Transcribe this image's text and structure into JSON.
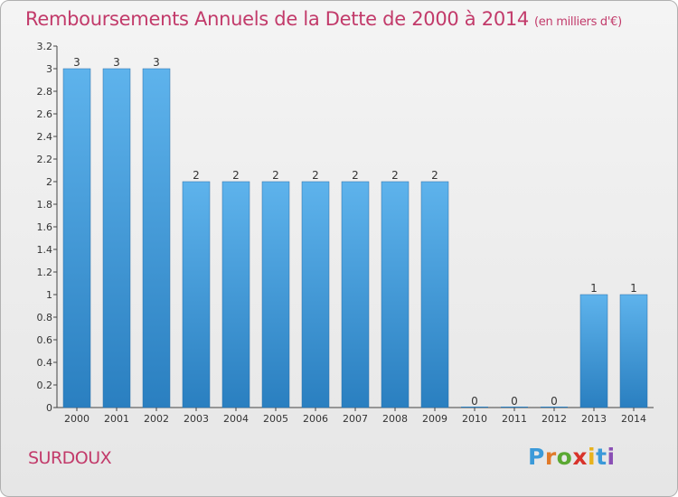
{
  "header": {
    "title": "Remboursements Annuels de la Dette de 2000 à 2014",
    "unit": "(en milliers d'€)"
  },
  "footer": {
    "commune": "SURDOUX",
    "logo_text": "Proxiti"
  },
  "colors": {
    "title": "#c23a6a",
    "bar_light": "#5eb3ec",
    "bar_dark": "#2a7fc0"
  },
  "chart_data": {
    "type": "bar",
    "title": "Remboursements Annuels de la Dette de 2000 à 2014",
    "subtitle": "(en milliers d'€)",
    "xlabel": "",
    "ylabel": "",
    "categories": [
      "2000",
      "2001",
      "2002",
      "2003",
      "2004",
      "2005",
      "2006",
      "2007",
      "2008",
      "2009",
      "2010",
      "2011",
      "2012",
      "2013",
      "2014"
    ],
    "values": [
      3,
      3,
      3,
      2,
      2,
      2,
      2,
      2,
      2,
      2,
      0,
      0,
      0,
      1,
      1
    ],
    "data_labels": [
      "3",
      "3",
      "3",
      "2",
      "2",
      "2",
      "2",
      "2",
      "2",
      "2",
      "0",
      "0",
      "0",
      "1",
      "1"
    ],
    "ylim": [
      0,
      3.2
    ],
    "yticks": [
      0,
      0.2,
      0.4,
      0.6,
      0.8,
      1,
      1.2,
      1.4,
      1.6,
      1.8,
      2,
      2.2,
      2.4,
      2.6,
      2.8,
      3,
      3.2
    ],
    "ytick_labels": [
      "0",
      "0.2",
      "0.4",
      "0.6",
      "0.8",
      "1",
      "1.2",
      "1.4",
      "1.6",
      "1.8",
      "2",
      "2.2",
      "2.4",
      "2.6",
      "2.8",
      "3",
      "3.2"
    ],
    "grid": false,
    "legend": "none"
  }
}
